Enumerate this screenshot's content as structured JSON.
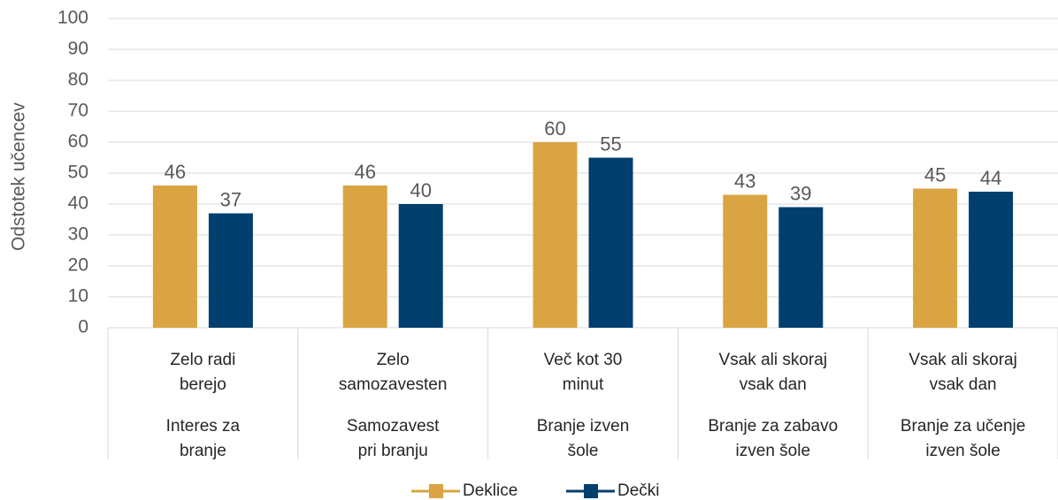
{
  "chart_data": {
    "type": "bar",
    "y_axis_label": "Odstotek učencev",
    "categories": [
      "Zelo radi\nberejo",
      "Zelo\nsamozavesten",
      "Več kot 30\nminut",
      "Vsak ali skoraj\nvsak dan",
      "Vsak ali skoraj\nvsak dan"
    ],
    "groups": [
      "Interes za\nbranje",
      "Samozavest\npri branju",
      "Branje izven\nšole",
      "Branje za zabavo\nizven šole",
      "Branje za učenje\nizven šole"
    ],
    "series": [
      {
        "name": "Deklice",
        "color": "#d9a441",
        "values": [
          46,
          46,
          60,
          43,
          45
        ]
      },
      {
        "name": "Dečki",
        "color": "#003f6e",
        "values": [
          37,
          40,
          55,
          39,
          44
        ]
      }
    ],
    "ylim": [
      0,
      100
    ],
    "yticks": [
      0,
      10,
      20,
      30,
      40,
      50,
      60,
      70,
      80,
      90,
      100
    ],
    "grid": true,
    "legend": "bottom"
  }
}
